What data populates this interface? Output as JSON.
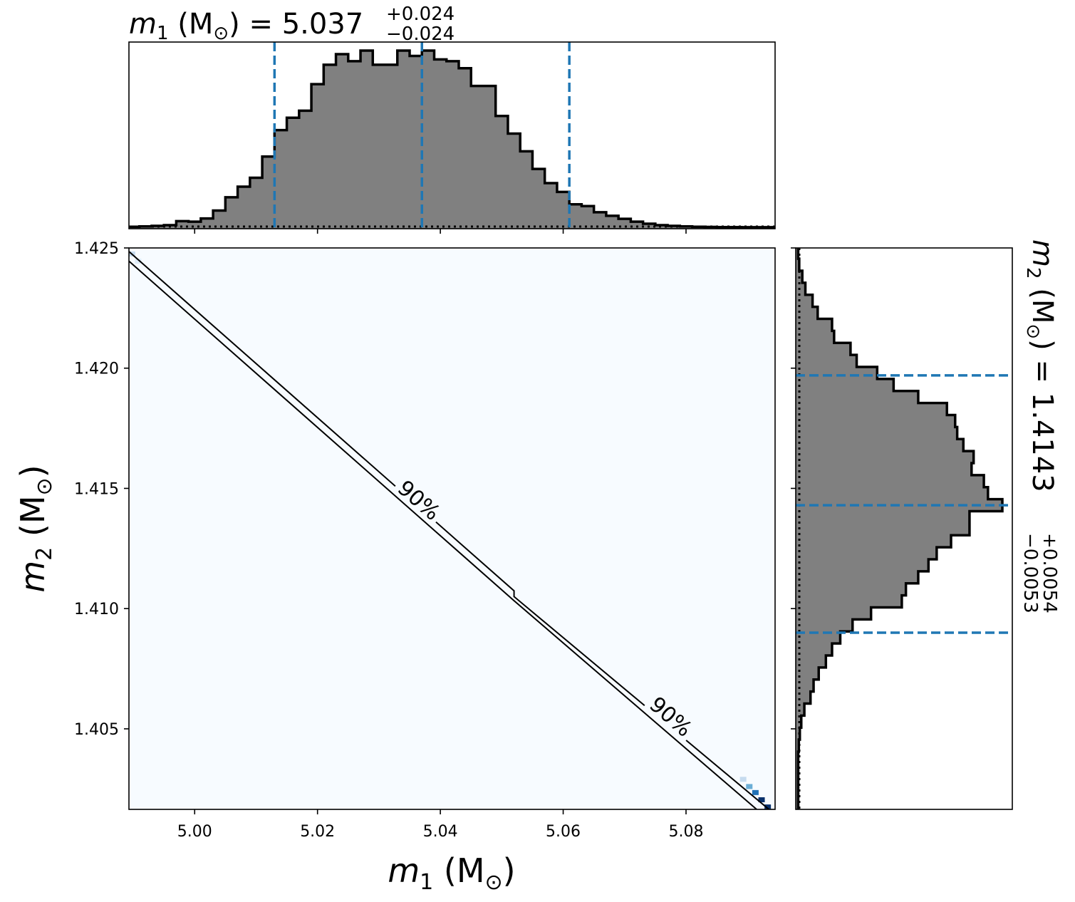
{
  "chart_data": [
    {
      "type": "area",
      "panel": "top-marginal",
      "title": {
        "var": "m",
        "sub": "1",
        "unit": " (M",
        "unit_sub": "⊙",
        "unit_close": ")",
        "eq": " = 5.037",
        "up": "+0.024",
        "down": "−0.024"
      },
      "quantiles": [
        5.013,
        5.037,
        5.061
      ],
      "xlim": [
        4.9893,
        5.0945
      ],
      "x": [
        4.99,
        4.992,
        4.994,
        4.996,
        4.998,
        5.0,
        5.002,
        5.004,
        5.006,
        5.008,
        5.01,
        5.012,
        5.014,
        5.016,
        5.018,
        5.02,
        5.022,
        5.024,
        5.026,
        5.028,
        5.03,
        5.032,
        5.034,
        5.036,
        5.038,
        5.04,
        5.042,
        5.044,
        5.046,
        5.048,
        5.05,
        5.052,
        5.054,
        5.056,
        5.058,
        5.06,
        5.062,
        5.064,
        5.066,
        5.068,
        5.07,
        5.072,
        5.074,
        5.076,
        5.078,
        5.08,
        5.082,
        5.084,
        5.086,
        5.088,
        5.09,
        5.092,
        5.094
      ],
      "y": [
        0.3,
        0.5,
        0.8,
        1.2,
        3.5,
        3.2,
        5.0,
        9.5,
        17,
        23,
        28,
        40,
        55,
        62,
        66,
        81,
        92,
        98,
        94,
        100,
        92,
        92,
        100,
        97,
        100,
        95,
        94,
        90,
        80,
        80,
        63,
        53,
        43,
        33,
        25,
        20,
        13,
        12,
        8.5,
        6.5,
        4.8,
        3.2,
        2.0,
        1.2,
        0.8,
        0.5,
        0.3,
        0.2,
        0.1,
        0.1,
        0.05,
        0.05,
        0.05
      ]
    },
    {
      "type": "heatmap",
      "panel": "joint",
      "xlabel": {
        "var": "m",
        "sub": "1",
        "unit": " (M",
        "unit_sub": "⊙",
        "unit_close": ")"
      },
      "ylabel": {
        "var": "m",
        "sub": "2",
        "unit": " (M",
        "unit_sub": "⊙",
        "unit_close": ")"
      },
      "xlim": [
        4.9893,
        5.0945
      ],
      "ylim": [
        1.40165,
        1.425
      ],
      "xticks": [
        "5.00",
        "5.02",
        "5.04",
        "5.06",
        "5.08"
      ],
      "xtick_values": [
        5.0,
        5.02,
        5.04,
        5.06,
        5.08
      ],
      "yticks": [
        "1.405",
        "1.410",
        "1.415",
        "1.420",
        "1.425"
      ],
      "ytick_values": [
        1.405,
        1.41,
        1.415,
        1.42,
        1.425
      ],
      "background_color": "#f7fbff",
      "contour_label": "90%",
      "contour_lines": [
        [
          [
            4.9893,
            1.42485
          ],
          [
            5.052,
            1.41074
          ],
          [
            5.052,
            1.4105
          ],
          [
            5.0935,
            1.40165
          ]
        ],
        [
          [
            4.9893,
            1.42445
          ],
          [
            5.052,
            1.41033
          ],
          [
            5.0915,
            1.40165
          ]
        ]
      ],
      "contour_label_positions": [
        [
          5.0365,
          1.4145
        ],
        [
          5.0775,
          1.4055
        ]
      ],
      "dense_cells": [
        {
          "x": 5.0933,
          "y": 1.40175,
          "color": "#08306b"
        },
        {
          "x": 5.0923,
          "y": 1.40205,
          "color": "#08306b"
        },
        {
          "x": 5.0913,
          "y": 1.40235,
          "color": "#2171b5"
        },
        {
          "x": 5.0903,
          "y": 1.4026,
          "color": "#6baed6"
        },
        {
          "x": 5.0893,
          "y": 1.4029,
          "color": "#c6dbef"
        },
        {
          "x": 4.9898,
          "y": 1.42475,
          "color": "#c6dbef"
        },
        {
          "x": 4.9908,
          "y": 1.42445,
          "color": "#deebf7"
        }
      ]
    },
    {
      "type": "area",
      "panel": "right-marginal",
      "title": {
        "var": "m",
        "sub": "2",
        "unit": " (M",
        "unit_sub": "⊙",
        "unit_close": ")",
        "eq": " = 1.4143",
        "up": "+0.0054",
        "down": "−0.0053"
      },
      "quantiles": [
        1.409,
        1.4143,
        1.4197
      ],
      "ylim": [
        1.40165,
        1.425
      ],
      "y": [
        1.4018,
        1.4023,
        1.4028,
        1.4033,
        1.4038,
        1.4043,
        1.4048,
        1.4053,
        1.4058,
        1.4063,
        1.4068,
        1.4073,
        1.4078,
        1.4083,
        1.4088,
        1.4093,
        1.4098,
        1.4103,
        1.4108,
        1.4113,
        1.4118,
        1.4123,
        1.4128,
        1.4133,
        1.4138,
        1.4143,
        1.4148,
        1.4153,
        1.4158,
        1.4163,
        1.4168,
        1.4173,
        1.4178,
        1.4183,
        1.4188,
        1.4193,
        1.4198,
        1.4203,
        1.4208,
        1.4213,
        1.4218,
        1.4223,
        1.4228,
        1.4233,
        1.4238,
        1.4243,
        1.4248
      ],
      "x": [
        0.5,
        0.5,
        0.5,
        0.5,
        0.5,
        0.8,
        1.3,
        2.0,
        3.5,
        6.5,
        8,
        10.5,
        14,
        17,
        21,
        27,
        36,
        51,
        53,
        59,
        64,
        68,
        75,
        84,
        84,
        100,
        93,
        91,
        85,
        86,
        81,
        78,
        77,
        73,
        59,
        47,
        39,
        29,
        26,
        18,
        17,
        10,
        7.5,
        4.0,
        2.5,
        1.0,
        0.5
      ]
    }
  ]
}
